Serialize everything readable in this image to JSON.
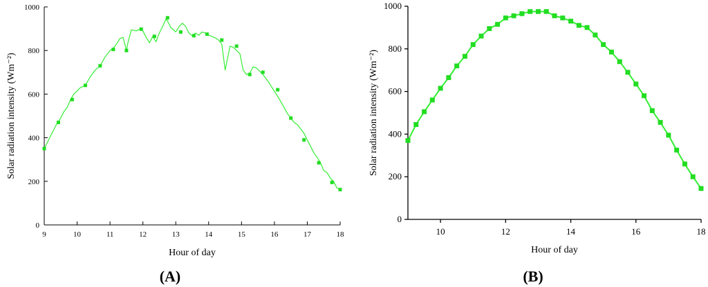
{
  "chart_data": [
    {
      "type": "line",
      "panel_label": "(A)",
      "xlabel": "Hour of day",
      "ylabel": "Solar radiation intensity (Wm⁻²)",
      "xlim": [
        9,
        18
      ],
      "ylim": [
        0,
        1000
      ],
      "xticks": [
        9,
        10,
        11,
        12,
        13,
        14,
        15,
        16,
        17,
        18
      ],
      "yticks": [
        0,
        200,
        400,
        600,
        800,
        1000
      ],
      "grid": false,
      "line_color": "#33ee33",
      "marker_color": "#22dd22",
      "series": [
        {
          "x": [
            9.0,
            9.1,
            9.2,
            9.3,
            9.4,
            9.5,
            9.6,
            9.7,
            9.8,
            9.9,
            10.0,
            10.1,
            10.25,
            10.4,
            10.55,
            10.7,
            10.85,
            11.0,
            11.1,
            11.2,
            11.3,
            11.4,
            11.5,
            11.55,
            11.65,
            11.8,
            11.9,
            12.0,
            12.1,
            12.2,
            12.3,
            12.4,
            12.5,
            12.6,
            12.7,
            12.75,
            12.85,
            13.0,
            13.1,
            13.2,
            13.3,
            13.4,
            13.5,
            13.6,
            13.7,
            13.8,
            13.9,
            14.0,
            14.1,
            14.2,
            14.3,
            14.4,
            14.5,
            14.55,
            14.65,
            14.75,
            14.85,
            14.95,
            15.05,
            15.15,
            15.25,
            15.35,
            15.45,
            15.55,
            15.65,
            15.8,
            15.95,
            16.1,
            16.25,
            16.4,
            16.5,
            16.6,
            16.7,
            16.8,
            16.9,
            17.0,
            17.1,
            17.2,
            17.3,
            17.4,
            17.5,
            17.6,
            17.7,
            17.8,
            17.9,
            18.0
          ],
          "y": [
            350,
            380,
            410,
            440,
            470,
            490,
            520,
            540,
            575,
            600,
            615,
            630,
            640,
            680,
            710,
            730,
            770,
            800,
            810,
            830,
            855,
            860,
            800,
            840,
            895,
            890,
            898,
            890,
            860,
            835,
            865,
            840,
            880,
            910,
            945,
            935,
            905,
            885,
            910,
            925,
            910,
            880,
            868,
            880,
            870,
            885,
            880,
            870,
            865,
            858,
            848,
            830,
            710,
            745,
            820,
            815,
            800,
            785,
            710,
            690,
            695,
            725,
            720,
            705,
            690,
            660,
            625,
            590,
            550,
            510,
            490,
            470,
            460,
            440,
            420,
            390,
            360,
            330,
            310,
            285,
            250,
            240,
            215,
            200,
            170,
            160
          ],
          "markers": [
            [
              9.0,
              350
            ],
            [
              9.43,
              470
            ],
            [
              9.85,
              575
            ],
            [
              10.25,
              640
            ],
            [
              10.7,
              730
            ],
            [
              11.1,
              805
            ],
            [
              11.5,
              800
            ],
            [
              11.95,
              898
            ],
            [
              12.35,
              865
            ],
            [
              12.75,
              950
            ],
            [
              13.15,
              885
            ],
            [
              13.55,
              868
            ],
            [
              13.95,
              875
            ],
            [
              14.4,
              848
            ],
            [
              14.85,
              820
            ],
            [
              15.25,
              690
            ],
            [
              15.65,
              700
            ],
            [
              16.1,
              620
            ],
            [
              16.5,
              490
            ],
            [
              16.9,
              390
            ],
            [
              17.35,
              285
            ],
            [
              17.75,
              195
            ],
            [
              18.0,
              162
            ]
          ]
        }
      ]
    },
    {
      "type": "line",
      "panel_label": "(B)",
      "xlabel": "Hour of day",
      "ylabel": "Solar radiation intensity (Wm⁻²)",
      "xlim": [
        9,
        18
      ],
      "ylim": [
        0,
        1000
      ],
      "xticks": [
        10,
        12,
        14,
        16,
        18
      ],
      "yticks": [
        0,
        200,
        400,
        600,
        800,
        1000
      ],
      "grid": false,
      "line_color": "#33ee33",
      "marker_color": "#22dd22",
      "series": [
        {
          "x": [
            9.0,
            9.25,
            9.5,
            9.75,
            10.0,
            10.25,
            10.5,
            10.75,
            11.0,
            11.25,
            11.5,
            11.75,
            12.0,
            12.25,
            12.5,
            12.75,
            13.0,
            13.25,
            13.5,
            13.75,
            14.0,
            14.25,
            14.5,
            14.75,
            15.0,
            15.25,
            15.5,
            15.75,
            16.0,
            16.25,
            16.5,
            16.75,
            17.0,
            17.25,
            17.5,
            17.75,
            18.0
          ],
          "y": [
            370,
            445,
            505,
            560,
            615,
            665,
            720,
            765,
            820,
            860,
            895,
            915,
            945,
            955,
            965,
            975,
            975,
            975,
            955,
            945,
            930,
            910,
            900,
            865,
            820,
            785,
            740,
            690,
            635,
            580,
            510,
            455,
            395,
            325,
            260,
            200,
            145
          ]
        }
      ]
    }
  ]
}
